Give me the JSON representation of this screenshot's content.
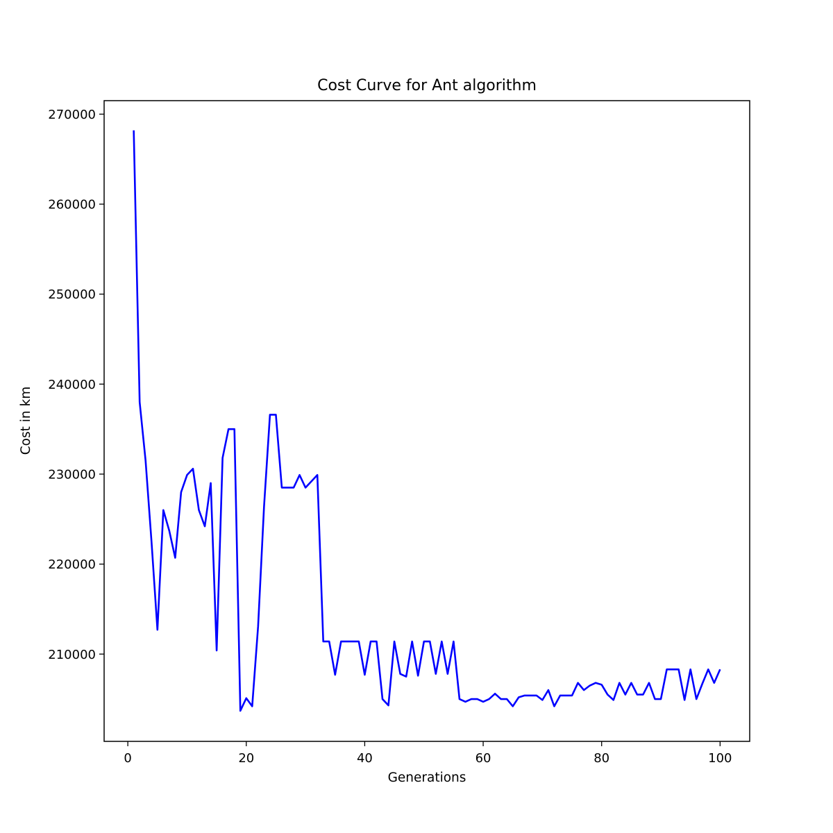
{
  "chart_data": {
    "type": "line",
    "title": "Cost Curve for Ant algorithm",
    "xlabel": "Generations",
    "ylabel": "Cost in km",
    "xlim": [
      -4,
      105
    ],
    "ylim": [
      200300,
      271500
    ],
    "x_ticks": [
      0,
      20,
      40,
      60,
      80,
      100
    ],
    "y_ticks": [
      210000,
      220000,
      230000,
      240000,
      250000,
      260000,
      270000
    ],
    "grid": false,
    "legend": "none",
    "series": [
      {
        "color": "#0000ff",
        "x": [
          1,
          2,
          3,
          4,
          5,
          6,
          7,
          8,
          9,
          10,
          11,
          12,
          13,
          14,
          15,
          16,
          17,
          18,
          19,
          20,
          21,
          22,
          23,
          24,
          25,
          26,
          27,
          28,
          29,
          30,
          31,
          32,
          33,
          34,
          35,
          36,
          37,
          38,
          39,
          40,
          41,
          42,
          43,
          44,
          45,
          46,
          47,
          48,
          49,
          50,
          51,
          52,
          53,
          54,
          55,
          56,
          57,
          58,
          59,
          60,
          61,
          62,
          63,
          64,
          65,
          66,
          67,
          68,
          69,
          70,
          71,
          72,
          73,
          74,
          75,
          76,
          77,
          78,
          79,
          80,
          81,
          82,
          83,
          84,
          85,
          86,
          87,
          88,
          89,
          90,
          91,
          92,
          93,
          94,
          95,
          96,
          97,
          98,
          99,
          100
        ],
        "values": [
          268200,
          238000,
          231500,
          222500,
          212700,
          226000,
          223700,
          220700,
          228000,
          229900,
          230600,
          226000,
          224200,
          229000,
          210400,
          231800,
          235000,
          235000,
          203700,
          205100,
          204200,
          213100,
          226400,
          236600,
          236600,
          228500,
          228500,
          228500,
          229900,
          228500,
          229200,
          229900,
          211400,
          211400,
          207700,
          211400,
          211400,
          211400,
          211400,
          207700,
          211400,
          211400,
          205000,
          204300,
          211400,
          207800,
          207500,
          211400,
          207600,
          211400,
          211400,
          207800,
          211400,
          207800,
          211400,
          205000,
          204700,
          205000,
          205000,
          204700,
          205000,
          205600,
          205000,
          205000,
          204200,
          205200,
          205400,
          205400,
          205400,
          204900,
          206000,
          204200,
          205400,
          205400,
          205400,
          206800,
          206000,
          206500,
          206800,
          206600,
          205500,
          204900,
          206800,
          205500,
          206800,
          205500,
          205500,
          206800,
          205000,
          205000,
          208300,
          208300,
          208300,
          204900,
          208300,
          205000,
          206700,
          208300,
          206800,
          208300
        ]
      }
    ]
  }
}
